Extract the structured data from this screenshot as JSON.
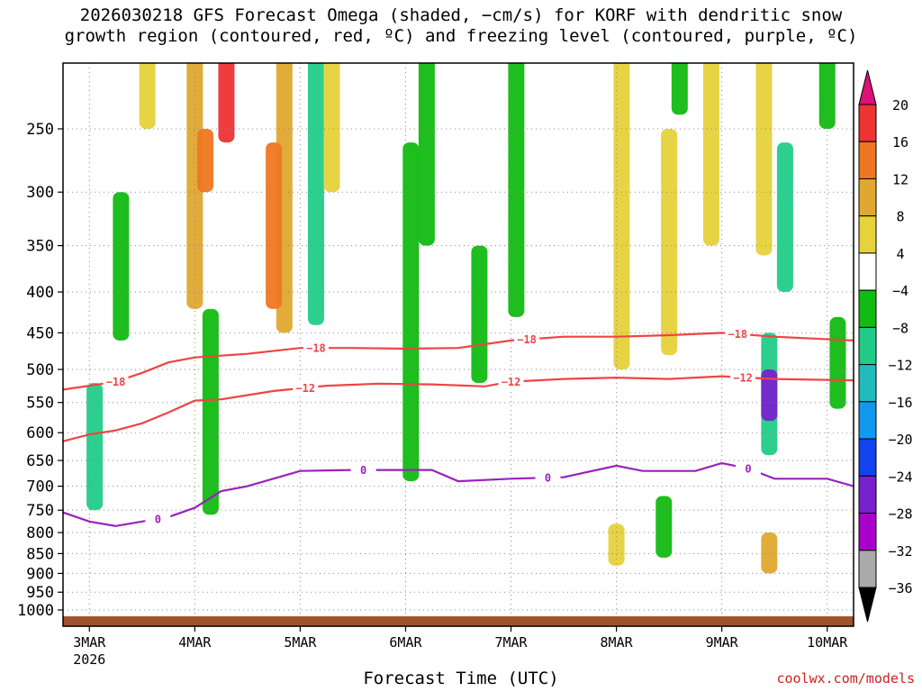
{
  "title_line1": "2026030218 GFS Forecast Omega (shaded, −cm/s) for KORF with dendritic snow",
  "title_line2": "growth region (contoured, red, ºC) and freezing level (contoured, purple, ºC)",
  "credit": "coolwx.com/models",
  "chart_data": {
    "type": "heatmap",
    "title": "2026030218 GFS Forecast Omega (shaded, −cm/s) for KORF with dendritic snow growth region (contoured, red, ºC) and freezing level (contoured, purple, ºC)",
    "xlabel": "Forecast Time (UTC)",
    "ylabel": "",
    "x_ticks": [
      "3MAR",
      "4MAR",
      "5MAR",
      "6MAR",
      "7MAR",
      "8MAR",
      "9MAR",
      "10MAR"
    ],
    "x_year_label": "2026",
    "xlim_days": [
      2.75,
      10.25
    ],
    "y_ticks": [
      250,
      300,
      350,
      400,
      450,
      500,
      550,
      600,
      650,
      700,
      750,
      800,
      850,
      900,
      950,
      1000
    ],
    "ylim": [
      200,
      1020
    ],
    "y_scale": "pressure (log-like, inverted)",
    "grid": true,
    "colorbar": {
      "labels": [
        "20",
        "16",
        "12",
        "8",
        "4",
        "−4",
        "−8",
        "−12",
        "−16",
        "−20",
        "−24",
        "−28",
        "−32",
        "−36"
      ],
      "colors": [
        "#dd1177",
        "#ee3333",
        "#ee7722",
        "#e0a830",
        "#e6d23a",
        "#ffffff",
        "#11bb11",
        "#22cc88",
        "#22bbbb",
        "#1199ee",
        "#1144ee",
        "#7722cc",
        "#aa00cc",
        "#aaaaaa",
        "#000000"
      ]
    },
    "contours": [
      {
        "level": "−18",
        "color": "#ee4444",
        "points": [
          [
            2.75,
            530
          ],
          [
            3.0,
            524
          ],
          [
            3.25,
            518
          ],
          [
            3.5,
            505
          ],
          [
            3.75,
            490
          ],
          [
            4.0,
            483
          ],
          [
            4.5,
            478
          ],
          [
            5.0,
            470
          ],
          [
            5.5,
            470
          ],
          [
            6.0,
            471
          ],
          [
            6.5,
            470
          ],
          [
            7.0,
            460
          ],
          [
            7.5,
            455
          ],
          [
            8.0,
            455
          ],
          [
            8.5,
            453
          ],
          [
            9.0,
            450
          ],
          [
            9.5,
            455
          ],
          [
            10.25,
            460
          ]
        ],
        "labels_at_days": [
          3.25,
          5.15,
          7.15,
          9.15
        ]
      },
      {
        "level": "−12",
        "color": "#ee4444",
        "points": [
          [
            2.75,
            615
          ],
          [
            3.0,
            603
          ],
          [
            3.25,
            596
          ],
          [
            3.5,
            584
          ],
          [
            3.75,
            566
          ],
          [
            4.0,
            547
          ],
          [
            4.25,
            545
          ],
          [
            4.75,
            532
          ],
          [
            5.25,
            524
          ],
          [
            5.75,
            521
          ],
          [
            6.25,
            522
          ],
          [
            6.75,
            525
          ],
          [
            7.0,
            518
          ],
          [
            7.5,
            514
          ],
          [
            8.0,
            512
          ],
          [
            8.5,
            514
          ],
          [
            9.0,
            510
          ],
          [
            9.5,
            514
          ],
          [
            10.25,
            516
          ]
        ],
        "labels_at_days": [
          5.05,
          7.0,
          9.2
        ]
      },
      {
        "level": "0",
        "color": "#9922bb",
        "points": [
          [
            2.75,
            755
          ],
          [
            3.0,
            775
          ],
          [
            3.25,
            785
          ],
          [
            3.5,
            775
          ],
          [
            3.75,
            765
          ],
          [
            4.0,
            745
          ],
          [
            4.25,
            710
          ],
          [
            4.5,
            700
          ],
          [
            5.0,
            670
          ],
          [
            5.5,
            668
          ],
          [
            5.75,
            668
          ],
          [
            6.25,
            668
          ],
          [
            6.5,
            690
          ],
          [
            7.0,
            685
          ],
          [
            7.5,
            682
          ],
          [
            8.0,
            660
          ],
          [
            8.25,
            670
          ],
          [
            8.75,
            670
          ],
          [
            9.0,
            655
          ],
          [
            9.25,
            665
          ],
          [
            9.5,
            685
          ],
          [
            10.0,
            685
          ],
          [
            10.25,
            700
          ]
        ],
        "labels_at_days": [
          3.65,
          5.6,
          7.35,
          9.25
        ]
      }
    ],
    "omega_regions": [
      {
        "day": 3.05,
        "p_top": 520,
        "p_bot": 750,
        "value": -12
      },
      {
        "day": 3.3,
        "p_top": 300,
        "p_bot": 460,
        "value": -8
      },
      {
        "day": 3.55,
        "p_top": 200,
        "p_bot": 250,
        "value": 4
      },
      {
        "day": 4.0,
        "p_top": 200,
        "p_bot": 420,
        "value": 8
      },
      {
        "day": 4.1,
        "p_top": 250,
        "p_bot": 300,
        "value": 12
      },
      {
        "day": 4.3,
        "p_top": 200,
        "p_bot": 260,
        "value": 16
      },
      {
        "day": 4.15,
        "p_top": 420,
        "p_bot": 760,
        "value": -8
      },
      {
        "day": 4.85,
        "p_top": 200,
        "p_bot": 450,
        "value": 8
      },
      {
        "day": 4.75,
        "p_top": 260,
        "p_bot": 420,
        "value": 12
      },
      {
        "day": 5.15,
        "p_top": 200,
        "p_bot": 440,
        "value": -12
      },
      {
        "day": 5.3,
        "p_top": 200,
        "p_bot": 300,
        "value": 4
      },
      {
        "day": 6.05,
        "p_top": 260,
        "p_bot": 690,
        "value": -8
      },
      {
        "day": 6.2,
        "p_top": 200,
        "p_bot": 350,
        "value": -8
      },
      {
        "day": 6.7,
        "p_top": 350,
        "p_bot": 520,
        "value": -8
      },
      {
        "day": 7.05,
        "p_top": 200,
        "p_bot": 430,
        "value": -8
      },
      {
        "day": 8.05,
        "p_top": 200,
        "p_bot": 500,
        "value": 4
      },
      {
        "day": 8.5,
        "p_top": 250,
        "p_bot": 480,
        "value": 4
      },
      {
        "day": 8.9,
        "p_top": 200,
        "p_bot": 350,
        "value": 4
      },
      {
        "day": 8.6,
        "p_top": 200,
        "p_bot": 240,
        "value": -8
      },
      {
        "day": 9.4,
        "p_top": 200,
        "p_bot": 360,
        "value": 4
      },
      {
        "day": 9.6,
        "p_top": 260,
        "p_bot": 400,
        "value": -12
      },
      {
        "day": 9.45,
        "p_top": 450,
        "p_bot": 640,
        "value": -12
      },
      {
        "day": 9.45,
        "p_top": 500,
        "p_bot": 580,
        "value": -28
      },
      {
        "day": 9.45,
        "p_top": 800,
        "p_bot": 900,
        "value": 8
      },
      {
        "day": 8.45,
        "p_top": 720,
        "p_bot": 860,
        "value": -8
      },
      {
        "day": 8.0,
        "p_top": 780,
        "p_bot": 880,
        "value": 4
      },
      {
        "day": 10.0,
        "p_top": 200,
        "p_bot": 250,
        "value": -8
      },
      {
        "day": 10.1,
        "p_top": 430,
        "p_bot": 560,
        "value": -8
      }
    ]
  },
  "colors": {
    "grid": "#888888",
    "ground": "#a0522d",
    "freezing_level": "#9922bb",
    "dgz": "#ee4444",
    "credit": "#cc2222"
  }
}
